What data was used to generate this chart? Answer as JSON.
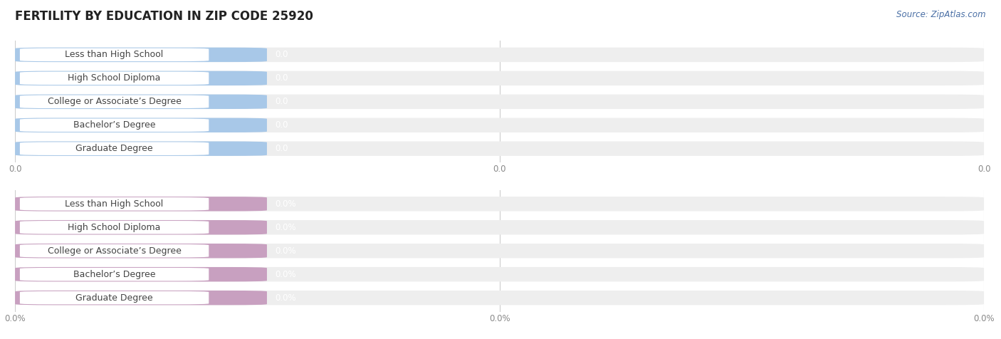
{
  "title": "FERTILITY BY EDUCATION IN ZIP CODE 25920",
  "source": "Source: ZipAtlas.com",
  "categories": [
    "Less than High School",
    "High School Diploma",
    "College or Associate’s Degree",
    "Bachelor’s Degree",
    "Graduate Degree"
  ],
  "top_values": [
    0.0,
    0.0,
    0.0,
    0.0,
    0.0
  ],
  "bottom_values": [
    0.0,
    0.0,
    0.0,
    0.0,
    0.0
  ],
  "top_color": "#a8c8e8",
  "bottom_color": "#c8a0c0",
  "bar_bg_color": "#eeeeee",
  "top_value_labels": [
    "0.0",
    "0.0",
    "0.0",
    "0.0",
    "0.0"
  ],
  "bottom_value_labels": [
    "0.0%",
    "0.0%",
    "0.0%",
    "0.0%",
    "0.0%"
  ],
  "top_axis_labels": [
    "0.0",
    "0.0",
    "0.0"
  ],
  "bottom_axis_labels": [
    "0.0%",
    "0.0%",
    "0.0%"
  ],
  "background_color": "#ffffff",
  "title_fontsize": 12,
  "label_fontsize": 9,
  "value_fontsize": 8.5,
  "axis_fontsize": 8.5,
  "source_fontsize": 8.5,
  "grid_color": "#cccccc",
  "label_text_color": "#444444",
  "axis_text_color": "#888888",
  "value_text_color": "#ffffff",
  "source_color": "#4a6fa5"
}
